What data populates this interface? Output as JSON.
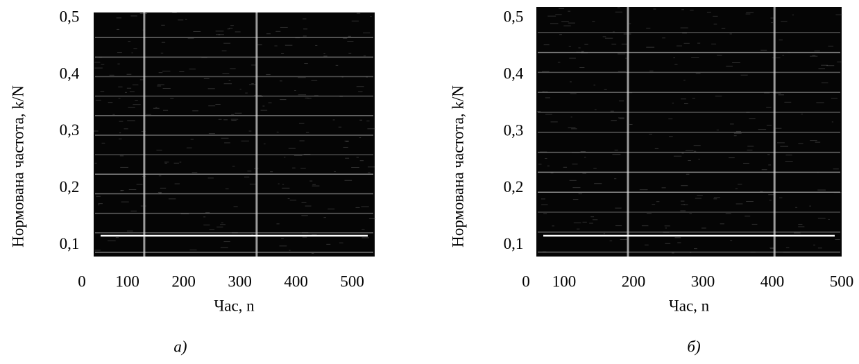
{
  "chart_data": [
    {
      "type": "spectrogram",
      "caption": "а)",
      "xlabel": "Час, n",
      "ylabel": "Нормована частота, k/N",
      "xlim": [
        40,
        540
      ],
      "xticks": [
        0,
        100,
        200,
        300,
        400,
        500
      ],
      "ylim": [
        0.08,
        0.51
      ],
      "yticks": [
        {
          "value": 0.1,
          "label": "0,1"
        },
        {
          "value": 0.2,
          "label": "0,2"
        },
        {
          "value": 0.3,
          "label": "0,3"
        },
        {
          "value": 0.4,
          "label": "0,4"
        },
        {
          "value": 0.5,
          "label": "0,5"
        }
      ]
    },
    {
      "type": "spectrogram",
      "caption": "б)",
      "xlabel": "Час, n",
      "ylabel": "Нормована частота, k/N",
      "xlim": [
        60,
        500
      ],
      "xticks": [
        0,
        100,
        200,
        300,
        400,
        500
      ],
      "ylim": [
        0.08,
        0.52
      ],
      "yticks": [
        {
          "value": 0.1,
          "label": "0,1"
        },
        {
          "value": 0.2,
          "label": "0,2"
        },
        {
          "value": 0.3,
          "label": "0,3"
        },
        {
          "value": 0.4,
          "label": "0,4"
        },
        {
          "value": 0.5,
          "label": "0,5"
        }
      ]
    }
  ]
}
